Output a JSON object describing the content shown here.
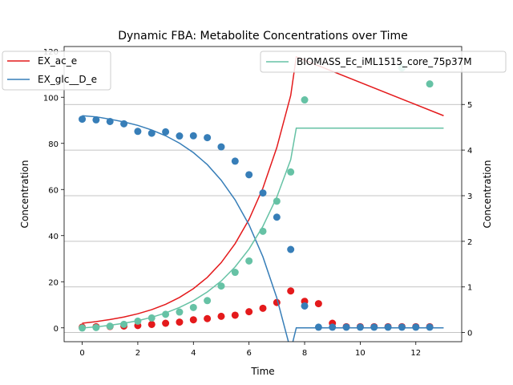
{
  "chart_data": {
    "type": "line",
    "title": "Dynamic FBA: Metabolite Concentrations over Time",
    "xlabel": "Time",
    "ylabel_left": "Concentration",
    "ylabel_right": "Concentration",
    "xlim": [
      -0.65,
      13.65
    ],
    "ylim_left": [
      -6,
      122
    ],
    "ylim_right": [
      -0.2,
      6.27
    ],
    "x_ticks": [
      0,
      2,
      4,
      6,
      8,
      10,
      12
    ],
    "y_ticks_left": [
      0,
      20,
      40,
      60,
      80,
      100,
      120
    ],
    "y_ticks_right": [
      0,
      1,
      2,
      3,
      4,
      5
    ],
    "grid": "horizontal gridlines at right-axis ticks",
    "legend_left_placement": "upper-left",
    "legend_right_placement": "upper-right",
    "series": [
      {
        "name": "EX_ac_e",
        "axis": "left",
        "color": "#e41a1c",
        "line": {
          "x": [
            0,
            0.5,
            1,
            1.5,
            2,
            2.5,
            3,
            3.5,
            4,
            4.5,
            5,
            5.5,
            6,
            6.5,
            7,
            7.5,
            7.7,
            13
          ],
          "y": [
            2,
            2.7,
            3.6,
            4.7,
            6.1,
            7.9,
            10.2,
            13.2,
            17.0,
            21.9,
            28.3,
            36.5,
            47.0,
            60.6,
            78.2,
            100.8,
            117.5,
            92
          ]
        },
        "points": {
          "x": [
            0,
            0.5,
            1,
            1.5,
            2,
            2.5,
            3,
            3.5,
            4,
            4.5,
            5,
            5.5,
            6,
            6.5,
            7,
            7.5,
            8,
            8.5,
            9,
            9.5,
            10,
            10.5,
            11,
            11.5,
            12,
            12.5
          ],
          "y": [
            0.3,
            0.5,
            0.6,
            0.8,
            1.0,
            1.5,
            2.0,
            2.5,
            3.5,
            4.0,
            5.0,
            5.5,
            7.0,
            8.5,
            11.0,
            16.0,
            11.5,
            10.5,
            2.0,
            0.5,
            0.5,
            0.5,
            0.5,
            0.5,
            0.5,
            0.5
          ]
        }
      },
      {
        "name": "EX_glc__D_e",
        "axis": "left",
        "color": "#377eb8",
        "line": {
          "x": [
            0,
            0.5,
            1,
            1.5,
            2,
            2.5,
            3,
            3.5,
            4,
            4.5,
            5,
            5.5,
            6,
            6.5,
            7,
            7.5,
            7.7,
            13
          ],
          "y": [
            92,
            91.5,
            90.5,
            89.3,
            87.8,
            85.8,
            83.3,
            80.1,
            76.0,
            70.8,
            64.0,
            55.5,
            44.7,
            30.8,
            13.0,
            -9.8,
            0,
            0
          ]
        },
        "points": {
          "x": [
            0,
            0.5,
            1,
            1.5,
            2,
            2.5,
            3,
            3.5,
            4,
            4.5,
            5,
            5.5,
            6,
            6.5,
            7,
            7.5,
            8,
            8.5,
            9,
            9.5,
            10,
            10.5,
            11,
            11.5,
            12,
            12.5
          ],
          "y": [
            90.5,
            90.2,
            89.5,
            88.5,
            85.2,
            84.4,
            85.0,
            83.2,
            83.3,
            82.5,
            78.5,
            72.3,
            66.4,
            58.5,
            48.0,
            34.0,
            9.5,
            0.3,
            0.3,
            0.3,
            0.3,
            0.3,
            0.3,
            0.3,
            0.3,
            0.3
          ]
        }
      },
      {
        "name": "BIOMASS_Ec_iML1515_core_75p37M",
        "axis": "right",
        "color": "#66c2a5",
        "line": {
          "x": [
            0,
            0.5,
            1,
            1.5,
            2,
            2.5,
            3,
            3.5,
            4,
            4.5,
            5,
            5.5,
            6,
            6.5,
            7,
            7.5,
            7.7,
            13
          ],
          "y": [
            0.1,
            0.125,
            0.16,
            0.205,
            0.26,
            0.335,
            0.43,
            0.55,
            0.7,
            0.89,
            1.13,
            1.44,
            1.83,
            2.33,
            2.97,
            3.79,
            4.48,
            4.48
          ]
        },
        "points": {
          "x": [
            0,
            0.5,
            1,
            1.5,
            2,
            2.5,
            3,
            3.5,
            4,
            4.5,
            5,
            5.5,
            6,
            6.5,
            7,
            7.5,
            8,
            11.5,
            12.5
          ],
          "y": [
            0.1,
            0.11,
            0.14,
            0.18,
            0.25,
            0.32,
            0.4,
            0.45,
            0.55,
            0.7,
            1.02,
            1.32,
            1.57,
            2.22,
            2.88,
            3.52,
            5.1,
            5.8,
            5.45
          ]
        }
      }
    ]
  }
}
